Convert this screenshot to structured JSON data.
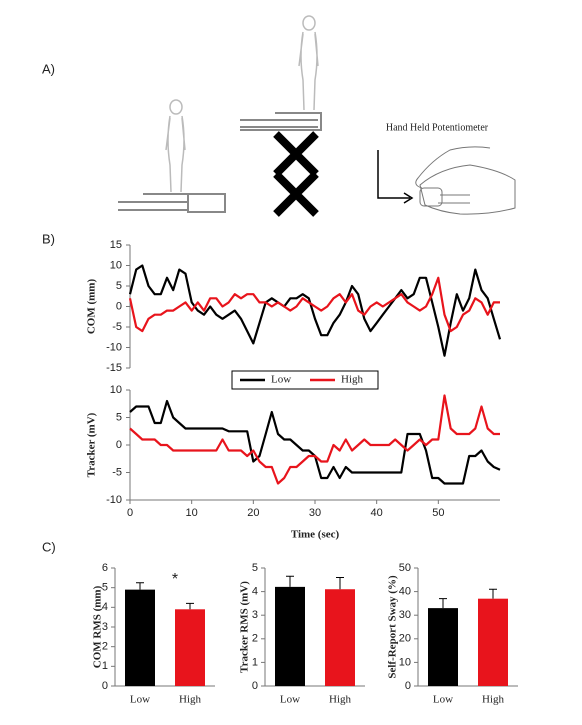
{
  "panel_labels": [
    "A)",
    "B)",
    "C)"
  ],
  "device_label": "Hand Held Potentiometer",
  "chart_data": [
    {
      "type": "line",
      "ylabel": "COM (mm)",
      "xlim": [
        0,
        60
      ],
      "ylim": [
        -15,
        15
      ],
      "yticks": [
        -15,
        -10,
        -5,
        0,
        5,
        10,
        15
      ],
      "x": [
        0,
        1,
        2,
        3,
        4,
        5,
        6,
        7,
        8,
        9,
        10,
        11,
        12,
        13,
        14,
        15,
        16,
        17,
        18,
        19,
        20,
        21,
        22,
        23,
        24,
        25,
        26,
        27,
        28,
        29,
        30,
        31,
        32,
        33,
        34,
        35,
        36,
        37,
        38,
        39,
        40,
        41,
        42,
        43,
        44,
        45,
        46,
        47,
        48,
        49,
        50,
        51,
        52,
        53,
        54,
        55,
        56,
        57,
        58,
        59,
        60
      ],
      "series": [
        {
          "color": "#000000",
          "values": [
            3,
            9,
            10,
            5,
            3,
            3,
            7,
            4,
            9,
            8,
            1,
            -1,
            -2,
            0,
            -2,
            -3,
            -2,
            -1,
            -3,
            -6,
            -9,
            -4,
            1,
            2,
            1,
            0,
            2,
            2,
            3,
            2,
            -3,
            -7,
            -7,
            -4,
            -2,
            1,
            5,
            3,
            -3,
            -6,
            -4,
            -2,
            0,
            2,
            4,
            2,
            3,
            7,
            7,
            1,
            -5,
            -12,
            -4,
            3,
            -1,
            2,
            9,
            4,
            2,
            -3,
            -8
          ]
        },
        {
          "color": "#e8141c",
          "values": [
            2,
            -5,
            -6,
            -3,
            -2,
            -2,
            -1,
            -1,
            0,
            1,
            -1,
            1,
            -1,
            2,
            2,
            0,
            1,
            3,
            2,
            3,
            3,
            1,
            1,
            0,
            1,
            0,
            -1,
            0,
            2,
            1,
            0,
            -1,
            0,
            2,
            3,
            1,
            3,
            -1,
            -2,
            0,
            1,
            0,
            1,
            2,
            3,
            1,
            0,
            -1,
            0,
            3,
            7,
            -2,
            -6,
            -5,
            -2,
            -1,
            2,
            1,
            -2,
            1,
            1
          ]
        }
      ]
    },
    {
      "type": "line",
      "ylabel": "Tracker (mV)",
      "xlabel": "Time (sec)",
      "xlim": [
        0,
        60
      ],
      "xticks": [
        0,
        10,
        20,
        30,
        40,
        50
      ],
      "ylim": [
        -10,
        10
      ],
      "yticks": [
        -10,
        -5,
        0,
        5,
        10
      ],
      "x": [
        0,
        1,
        2,
        3,
        4,
        5,
        6,
        7,
        8,
        9,
        10,
        11,
        12,
        13,
        14,
        15,
        16,
        17,
        18,
        19,
        20,
        21,
        22,
        23,
        24,
        25,
        26,
        27,
        28,
        29,
        30,
        31,
        32,
        33,
        34,
        35,
        36,
        37,
        38,
        39,
        40,
        41,
        42,
        43,
        44,
        45,
        46,
        47,
        48,
        49,
        50,
        51,
        52,
        53,
        54,
        55,
        56,
        57,
        58,
        59,
        60
      ],
      "series": [
        {
          "name": "Low",
          "color": "#000000",
          "values": [
            6,
            7,
            7,
            7,
            4,
            4,
            8,
            5,
            4,
            3,
            3,
            3,
            3,
            3,
            3,
            3,
            2.5,
            2.5,
            2.5,
            2.5,
            -3,
            -2,
            2,
            6,
            2,
            1,
            1,
            0,
            -1,
            -1,
            -2,
            -6,
            -6,
            -4,
            -6,
            -4,
            -5,
            -5,
            -5,
            -5,
            -5,
            -5,
            -5,
            -5,
            -5,
            2,
            2,
            2,
            -1,
            -6,
            -6,
            -7,
            -7,
            -7,
            -7,
            -2,
            -2,
            -1,
            -3,
            -4,
            -4.5
          ]
        },
        {
          "name": "High",
          "color": "#e8141c",
          "values": [
            3,
            2,
            1,
            1,
            1,
            0,
            0,
            -1,
            -1,
            -1,
            -1,
            -1,
            -1,
            -1,
            -1,
            1,
            -1,
            -1,
            -1,
            -2,
            -1,
            -3,
            -4,
            -4,
            -7,
            -6,
            -4,
            -4,
            -3,
            -2,
            -2,
            -3,
            -3,
            0,
            -1,
            1,
            -1,
            0,
            1,
            0,
            0,
            0,
            0,
            1,
            0,
            -1,
            0,
            1,
            0,
            1,
            1,
            9,
            3,
            2,
            2,
            2,
            3,
            7,
            3,
            2,
            2
          ]
        }
      ]
    },
    {
      "type": "bar",
      "ylabel": "COM RMS (mm)",
      "categories": [
        "Low",
        "High"
      ],
      "values": [
        4.9,
        3.9
      ],
      "errors": [
        0.35,
        0.3
      ],
      "colors": [
        "#000000",
        "#e8141c"
      ],
      "ylim": [
        0,
        6
      ],
      "yticks": [
        0,
        1,
        2,
        3,
        4,
        5,
        6
      ],
      "annotation": "*"
    },
    {
      "type": "bar",
      "ylabel": "Tracker RMS (mV)",
      "categories": [
        "Low",
        "High"
      ],
      "values": [
        4.2,
        4.1
      ],
      "errors": [
        0.45,
        0.5
      ],
      "colors": [
        "#000000",
        "#e8141c"
      ],
      "ylim": [
        0,
        5
      ],
      "yticks": [
        0,
        1,
        2,
        3,
        4,
        5
      ]
    },
    {
      "type": "bar",
      "ylabel": "Self-Report Sway (%)",
      "categories": [
        "Low",
        "High"
      ],
      "values": [
        33,
        37
      ],
      "errors": [
        4,
        4
      ],
      "colors": [
        "#000000",
        "#e8141c"
      ],
      "ylim": [
        0,
        50
      ],
      "yticks": [
        0,
        10,
        20,
        30,
        40,
        50
      ]
    }
  ]
}
